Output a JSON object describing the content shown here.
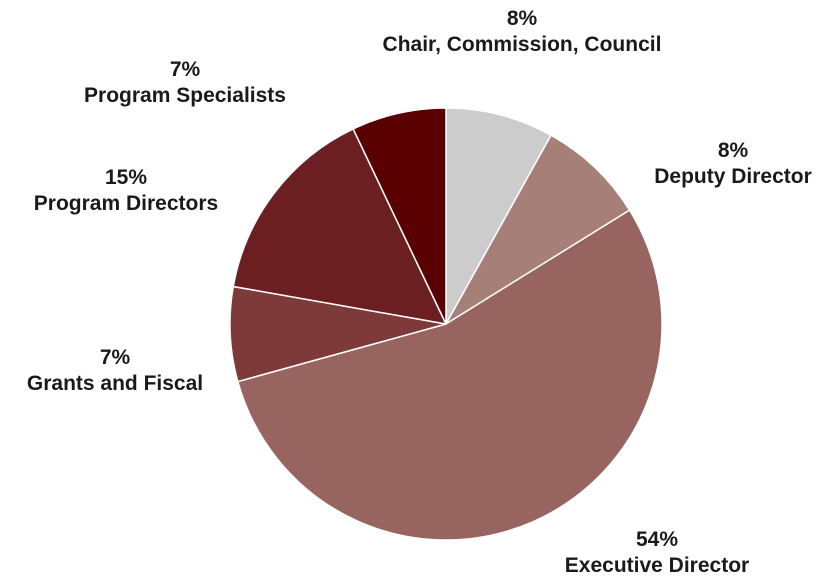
{
  "chart_data": {
    "type": "pie",
    "start_angle_deg": 0,
    "direction": "clockwise",
    "slices": [
      {
        "label": "Chair, Commission, Council",
        "value": 8,
        "percent_label": "8%",
        "color": "#cccccc"
      },
      {
        "label": "Deputy Director",
        "value": 8,
        "percent_label": "8%",
        "color": "#a77f79"
      },
      {
        "label": "Executive Director",
        "value": 54,
        "percent_label": "54%",
        "color": "#976460"
      },
      {
        "label": "Grants and Fiscal",
        "value": 7,
        "percent_label": "7%",
        "color": "#7d3a39"
      },
      {
        "label": "Program Directors",
        "value": 15,
        "percent_label": "15%",
        "color": "#6c1f21"
      },
      {
        "label": "Program Specialists",
        "value": 7,
        "percent_label": "7%",
        "color": "#5a0000"
      }
    ]
  }
}
